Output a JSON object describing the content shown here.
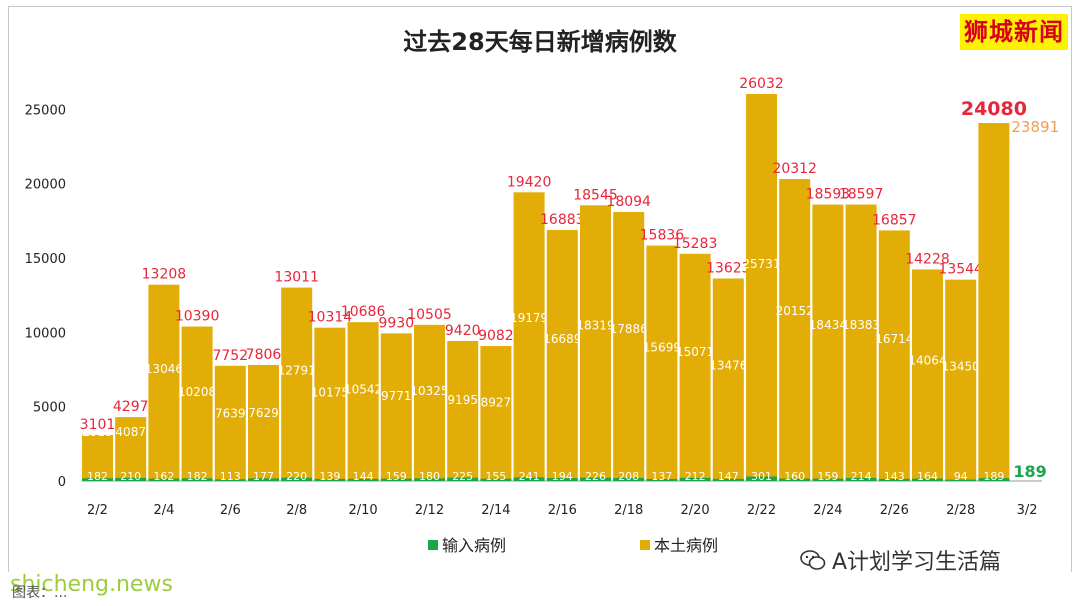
{
  "watermark": "狮城新闻",
  "wechat_account": "A计划学习生活篇",
  "site_name": "shicheng.news",
  "credit": "图表：...",
  "colors": {
    "local": "#e3ad08",
    "imported": "#1aa64a",
    "total_label": "#e8263a",
    "last_local_label": "#f0a050"
  },
  "chart_data": {
    "type": "bar",
    "title": "过去28天每日新增病例数",
    "categories": [
      "2/2",
      "2/3",
      "2/4",
      "2/5",
      "2/6",
      "2/7",
      "2/8",
      "2/9",
      "2/10",
      "2/11",
      "2/12",
      "2/13",
      "2/14",
      "2/15",
      "2/16",
      "2/17",
      "2/18",
      "2/19",
      "2/20",
      "2/21",
      "2/22",
      "2/23",
      "2/24",
      "2/25",
      "2/26",
      "2/27",
      "2/28",
      "3/1",
      "3/2"
    ],
    "x_tick_labels": [
      "2/2",
      "2/4",
      "2/6",
      "2/8",
      "2/10",
      "2/12",
      "2/14",
      "2/16",
      "2/18",
      "2/20",
      "2/22",
      "2/24",
      "2/26",
      "2/28",
      "3/2"
    ],
    "ylim": [
      0,
      27000
    ],
    "yticks": [
      0,
      5000,
      10000,
      15000,
      20000,
      25000
    ],
    "stacked": true,
    "series": [
      {
        "name": "输入病例",
        "values": [
          182,
          210,
          162,
          182,
          113,
          177,
          220,
          139,
          144,
          159,
          180,
          225,
          155,
          241,
          194,
          226,
          208,
          137,
          212,
          147,
          301,
          160,
          159,
          214,
          143,
          164,
          94,
          189,
          null
        ]
      },
      {
        "name": "本土病例",
        "values": [
          2919,
          4087,
          13046,
          10208,
          7639,
          7629,
          12791,
          10175,
          10542,
          9771,
          10325,
          9195,
          8927,
          19179,
          16689,
          18319,
          17886,
          15699,
          15071,
          13476,
          25731,
          20152,
          18434,
          18383,
          16714,
          14064,
          13450,
          23891,
          null
        ]
      }
    ],
    "totals": [
      3101,
      4297,
      13208,
      10390,
      7752,
      7806,
      13011,
      10314,
      10686,
      9930,
      10505,
      9420,
      9082,
      19420,
      16883,
      18545,
      18094,
      15836,
      15283,
      13623,
      26032,
      20312,
      18593,
      18597,
      16857,
      14228,
      13544,
      24080,
      null
    ],
    "legend": [
      {
        "name": "输入病例",
        "color": "#1aa64a"
      },
      {
        "name": "本土病例",
        "color": "#e3ad08"
      }
    ],
    "legend_position": "bottom",
    "grid": false
  }
}
